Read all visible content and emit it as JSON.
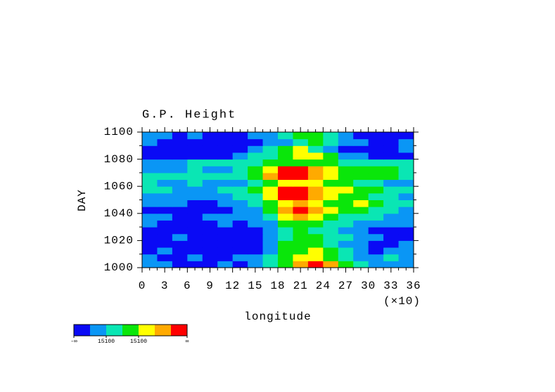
{
  "chart_data": {
    "type": "heatmap",
    "title": "G.P. Height",
    "xlabel": "longitude",
    "xscale_note": "(×10)",
    "ylabel": "DAY",
    "xlim": [
      0,
      36
    ],
    "xticks": [
      0,
      3,
      6,
      9,
      12,
      15,
      18,
      21,
      24,
      27,
      30,
      33,
      36
    ],
    "ylim": [
      1000,
      1100
    ],
    "yticks": [
      1000,
      1020,
      1040,
      1060,
      1080,
      1100
    ],
    "colorbar": {
      "colors": [
        "#0a0af5",
        "#0a96f5",
        "#0ae6b4",
        "#0ae60a",
        "#ffff00",
        "#ffaa00",
        "#ff0000"
      ],
      "labels": [
        "-∞",
        "15100",
        "15100",
        "∞"
      ]
    },
    "z": [
      [
        1,
        1,
        0,
        0,
        0,
        1,
        0,
        1,
        2,
        3,
        5,
        6,
        5,
        3,
        2,
        1,
        1,
        1
      ],
      [
        1,
        0,
        0,
        1,
        0,
        0,
        1,
        1,
        2,
        3,
        4,
        4,
        3,
        2,
        1,
        1,
        2,
        1
      ],
      [
        0,
        1,
        0,
        0,
        0,
        0,
        0,
        0,
        1,
        3,
        3,
        4,
        3,
        2,
        1,
        0,
        1,
        1
      ],
      [
        0,
        0,
        0,
        0,
        0,
        0,
        0,
        0,
        1,
        3,
        3,
        3,
        2,
        1,
        1,
        0,
        0,
        1
      ],
      [
        0,
        0,
        1,
        0,
        0,
        0,
        0,
        0,
        1,
        2,
        3,
        3,
        2,
        2,
        1,
        1,
        0,
        0
      ],
      [
        0,
        0,
        0,
        0,
        0,
        0,
        0,
        0,
        1,
        2,
        3,
        2,
        2,
        1,
        1,
        0,
        0,
        0
      ],
      [
        1,
        0,
        0,
        0,
        0,
        1,
        0,
        1,
        1,
        3,
        3,
        3,
        2,
        2,
        1,
        1,
        1,
        1
      ],
      [
        1,
        1,
        0,
        0,
        1,
        1,
        1,
        1,
        2,
        4,
        5,
        4,
        3,
        2,
        2,
        2,
        1,
        1
      ],
      [
        0,
        0,
        0,
        0,
        0,
        0,
        1,
        1,
        3,
        5,
        6,
        5,
        4,
        3,
        3,
        2,
        2,
        1
      ],
      [
        1,
        1,
        1,
        0,
        0,
        1,
        1,
        2,
        3,
        4,
        5,
        4,
        3,
        3,
        4,
        3,
        2,
        2
      ],
      [
        1,
        1,
        1,
        1,
        1,
        1,
        2,
        2,
        4,
        6,
        6,
        5,
        4,
        3,
        3,
        2,
        2,
        1
      ],
      [
        2,
        2,
        1,
        1,
        1,
        2,
        2,
        3,
        4,
        6,
        6,
        5,
        4,
        4,
        3,
        3,
        2,
        2
      ],
      [
        2,
        1,
        1,
        2,
        1,
        1,
        1,
        2,
        3,
        4,
        4,
        4,
        3,
        3,
        2,
        2,
        1,
        1
      ],
      [
        2,
        2,
        2,
        2,
        2,
        2,
        2,
        3,
        5,
        6,
        6,
        5,
        4,
        3,
        3,
        3,
        3,
        2
      ],
      [
        1,
        1,
        1,
        2,
        1,
        1,
        2,
        3,
        4,
        6,
        6,
        5,
        4,
        3,
        3,
        3,
        3,
        2
      ],
      [
        1,
        1,
        1,
        2,
        2,
        2,
        2,
        2,
        3,
        3,
        3,
        3,
        3,
        2,
        2,
        2,
        2,
        2
      ],
      [
        0,
        0,
        0,
        0,
        0,
        0,
        1,
        2,
        2,
        3,
        4,
        4,
        3,
        1,
        1,
        0,
        0,
        0
      ],
      [
        0,
        0,
        0,
        0,
        0,
        0,
        0,
        1,
        2,
        3,
        4,
        2,
        1,
        0,
        0,
        0,
        0,
        1
      ],
      [
        1,
        0,
        0,
        0,
        0,
        0,
        0,
        0,
        1,
        1,
        2,
        3,
        2,
        1,
        1,
        0,
        0,
        1
      ],
      [
        1,
        1,
        0,
        1,
        0,
        0,
        0,
        1,
        1,
        2,
        3,
        3,
        2,
        1,
        0,
        0,
        0,
        0
      ]
    ]
  }
}
